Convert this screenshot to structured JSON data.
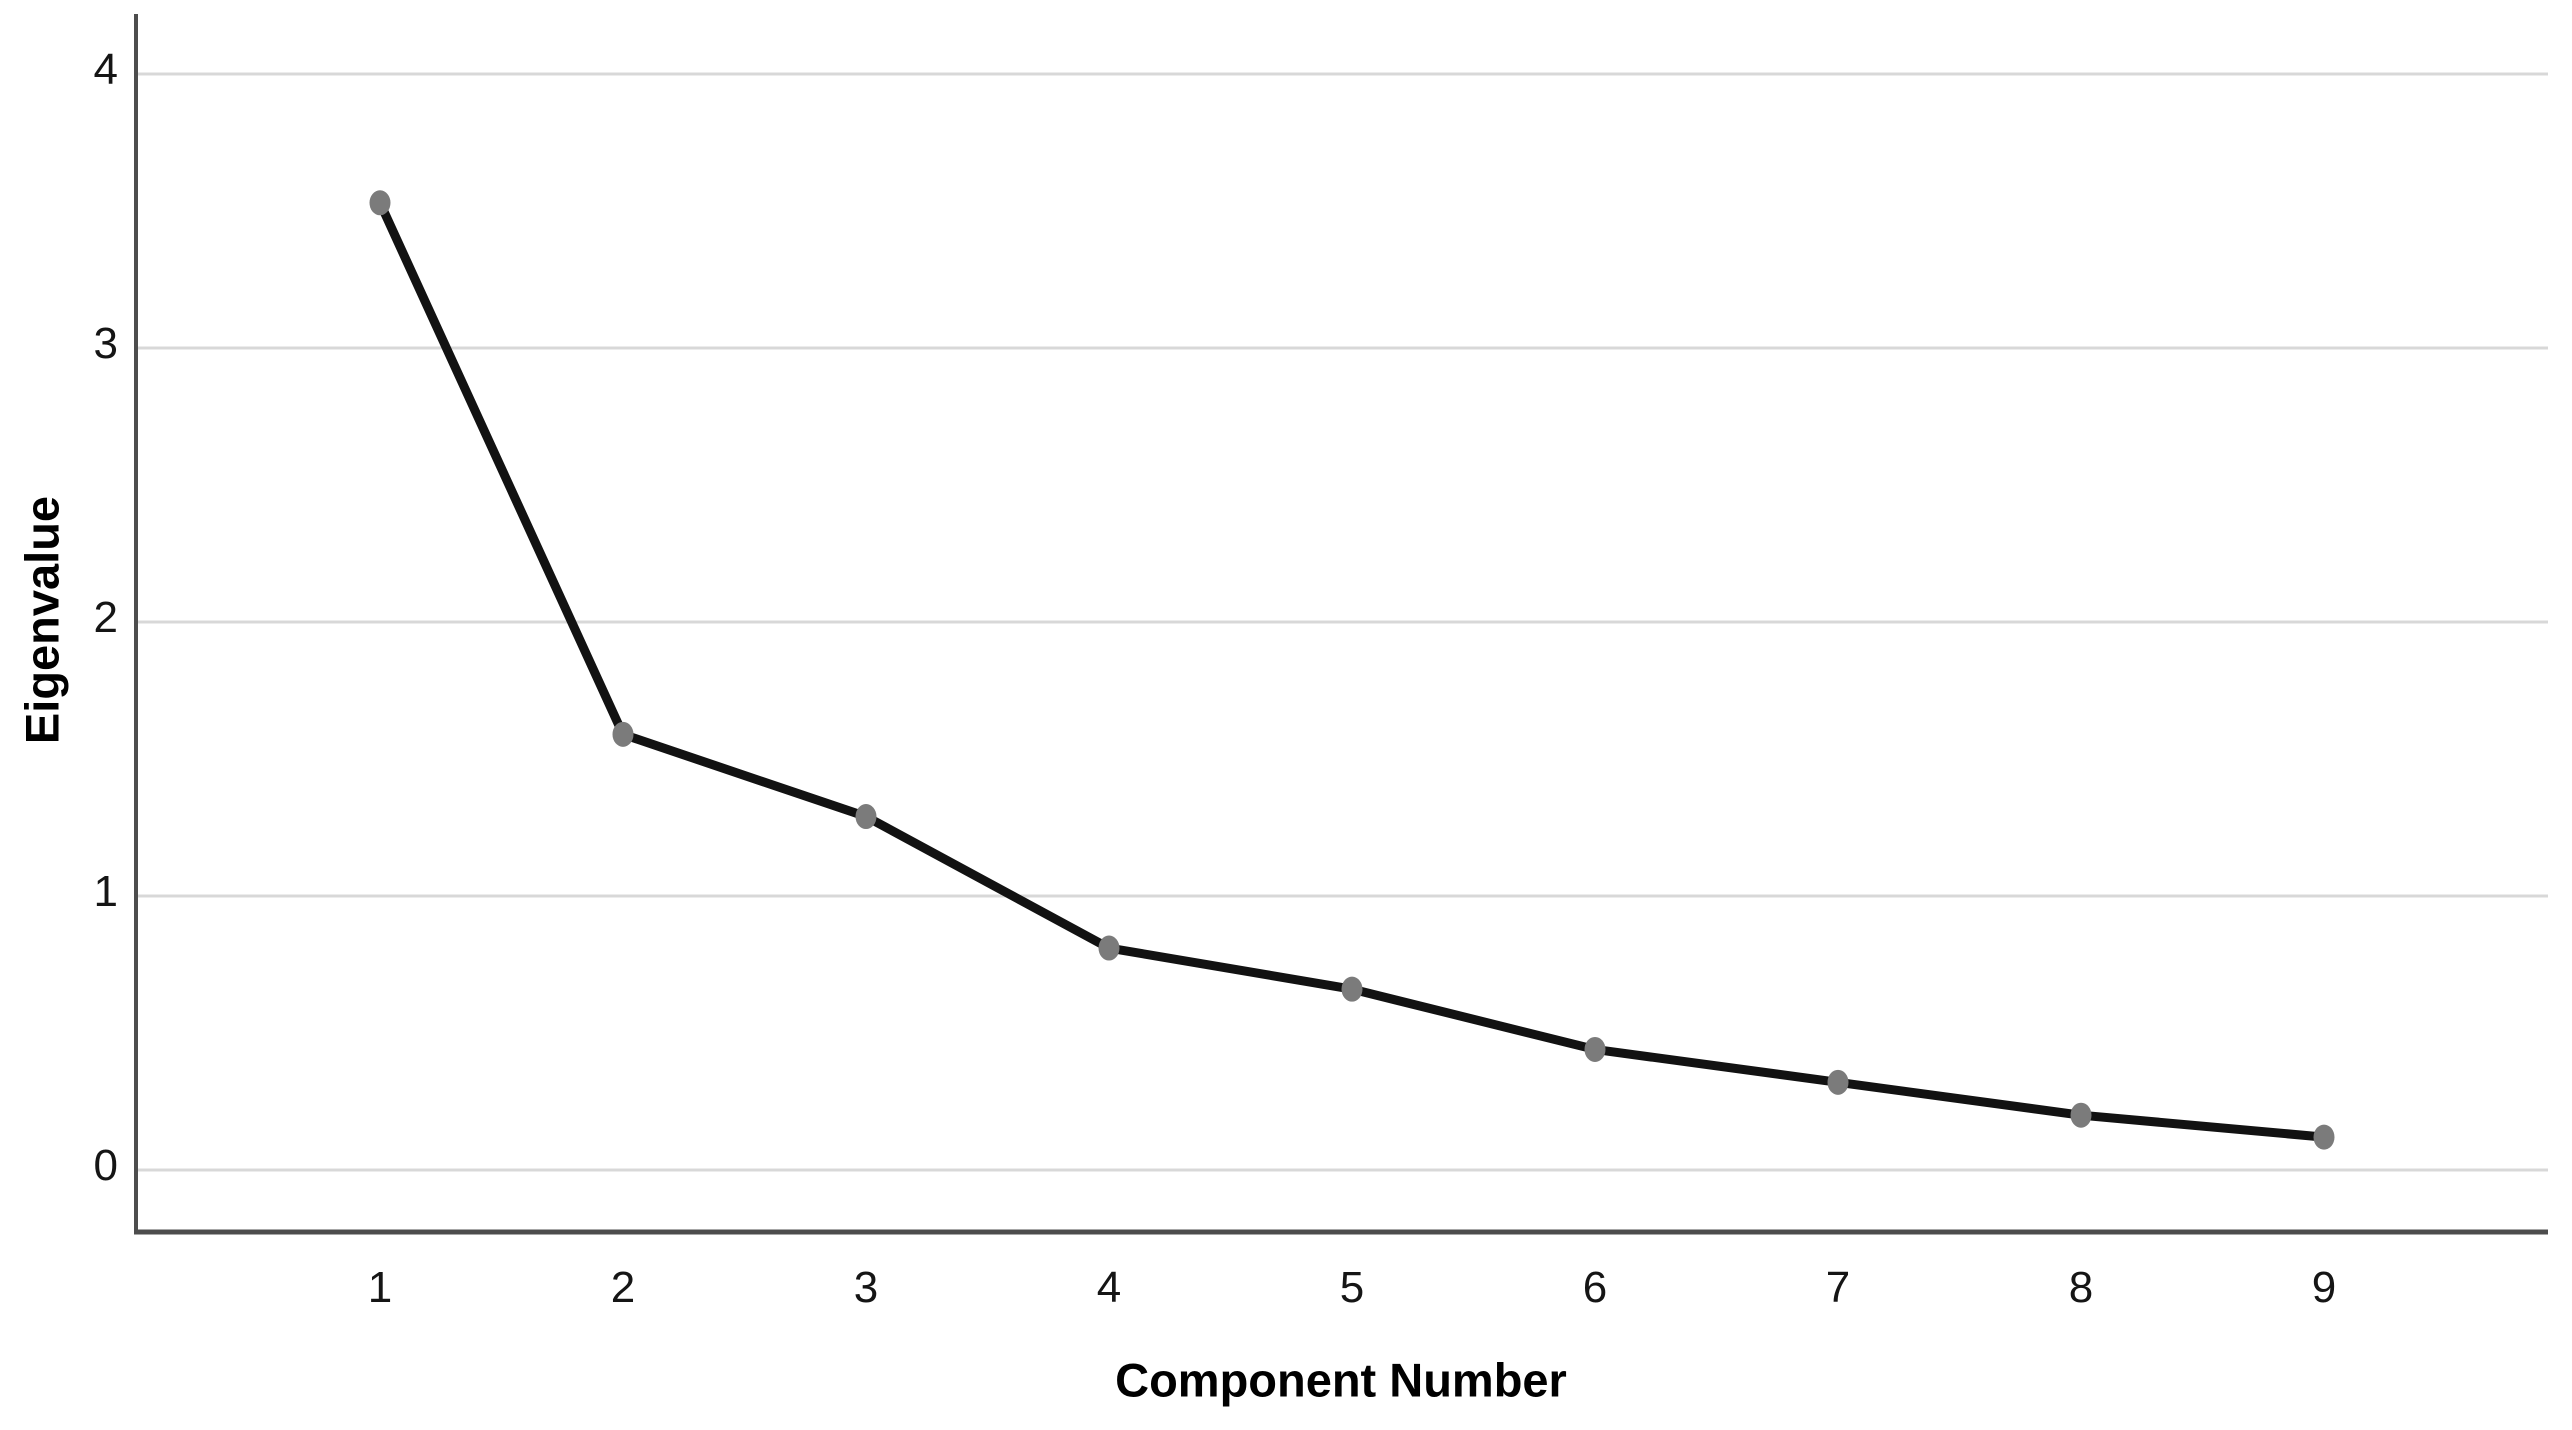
{
  "chart_data": {
    "type": "line",
    "title": "",
    "xlabel": "Component Number",
    "ylabel": "Eigenvalue",
    "categories": [
      1,
      2,
      3,
      4,
      5,
      6,
      7,
      8,
      9
    ],
    "series": [
      {
        "name": "Eigenvalue",
        "values": [
          3.53,
          1.59,
          1.29,
          0.81,
          0.66,
          0.44,
          0.32,
          0.2,
          0.12
        ]
      }
    ],
    "yticks": [
      0,
      1,
      2,
      3,
      4
    ],
    "ylim": [
      -0.23,
      4.22
    ],
    "grid": "horizontal",
    "legend_position": "none",
    "marker": "filled-circle",
    "colors": {
      "background": "#ffffff",
      "line": "#121212",
      "marker": "#7b7b7b",
      "gridline": "#d8d8d8",
      "axis": "#4d4d4d",
      "tick_text": "#151515",
      "title_text": "#000000"
    }
  }
}
